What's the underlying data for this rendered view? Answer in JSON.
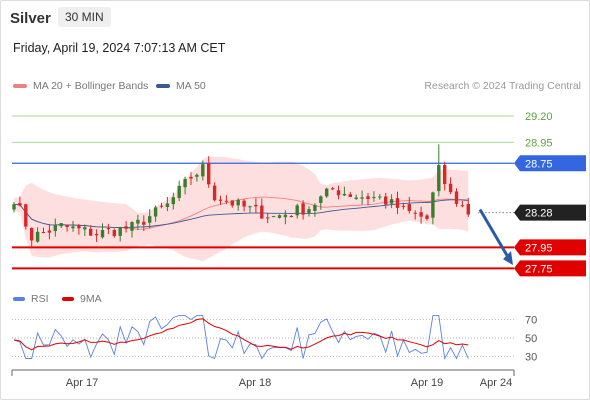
{
  "header": {
    "title": "Silver",
    "timeframe": "30 MIN",
    "datetime": "Friday, April 19, 2024 7:07:13 AM CET"
  },
  "legend": {
    "ma20_label": "MA 20 + Bollinger Bands",
    "ma50_label": "MA 50",
    "copyright": "Research © 2024 Trading Central",
    "rsi_label": "RSI",
    "ma9_label": "9MA"
  },
  "colors": {
    "ma20": "#f08080",
    "bollinger_fill": "#fdd9d9",
    "ma50": "#3b5998",
    "bull_candle": "#3a7d2c",
    "bear_candle": "#d62828",
    "resistance_green": "#8fce72",
    "pivot_blue": "#3366e0",
    "support_red": "#e00000",
    "rsi_line": "#5b82e0",
    "rsi_ma9": "#e00000",
    "arrow": "#2a5aa8",
    "current_price_tag": "#222222"
  },
  "chart_data": [
    {
      "type": "candlestick",
      "title": "Silver",
      "timeframe": "30 MIN",
      "x_ticks": [
        "Apr 17",
        "Apr 18",
        "Apr 19",
        "Apr 24"
      ],
      "ylim": [
        27.72,
        29.3
      ],
      "levels": [
        {
          "value": 29.2,
          "label": "29.20",
          "style": "resistance"
        },
        {
          "value": 28.95,
          "label": "28.95",
          "style": "resistance"
        },
        {
          "value": 28.75,
          "label": "28.75",
          "style": "pivot"
        },
        {
          "value": 28.28,
          "label": "28.28",
          "style": "current"
        },
        {
          "value": 27.95,
          "label": "27.95",
          "style": "support"
        },
        {
          "value": 27.75,
          "label": "27.75",
          "style": "support"
        }
      ],
      "forecast_arrow": {
        "from": 28.31,
        "to": 27.8
      },
      "series": [
        {
          "name": "MA 20 + Bollinger Bands"
        },
        {
          "name": "MA 50"
        }
      ]
    },
    {
      "type": "line",
      "title": "RSI",
      "y_ticks": [
        70,
        50,
        30
      ],
      "ylim": [
        20,
        80
      ],
      "series": [
        {
          "name": "RSI"
        },
        {
          "name": "9MA"
        }
      ]
    }
  ]
}
